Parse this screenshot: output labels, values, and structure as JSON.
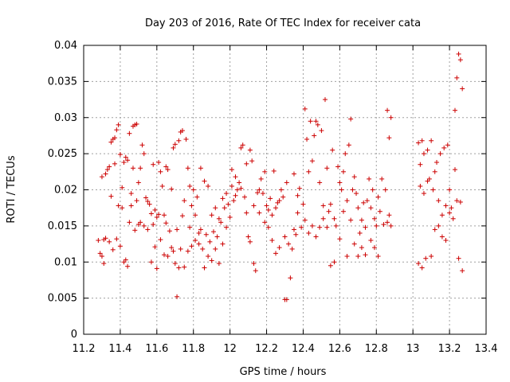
{
  "chart_data": {
    "type": "scatter",
    "title": "Day 203 of 2016, Rate Of TEC Index for receiver cata",
    "xlabel": "GPS time / hours",
    "ylabel": "ROTI / TECUs",
    "xlim": [
      11.2,
      13.4
    ],
    "ylim": [
      0,
      0.04
    ],
    "xticks": [
      "11.2",
      "11.4",
      "11.6",
      "11.8",
      "12",
      "12.2",
      "12.4",
      "12.6",
      "12.8",
      "13",
      "13.2",
      "13.4"
    ],
    "yticks": [
      "0",
      "0.005",
      "0.01",
      "0.015",
      "0.02",
      "0.025",
      "0.03",
      "0.035",
      "0.04"
    ],
    "grid": true,
    "series_color": "#cc0000",
    "series": [
      {
        "name": "ROTI",
        "points": [
          [
            11.28,
            0.013
          ],
          [
            11.29,
            0.0112
          ],
          [
            11.3,
            0.0108
          ],
          [
            11.3,
            0.0218
          ],
          [
            11.31,
            0.0131
          ],
          [
            11.31,
            0.0098
          ],
          [
            11.32,
            0.0222
          ],
          [
            11.32,
            0.0133
          ],
          [
            11.33,
            0.0228
          ],
          [
            11.34,
            0.0232
          ],
          [
            11.34,
            0.0128
          ],
          [
            11.35,
            0.0191
          ],
          [
            11.35,
            0.0266
          ],
          [
            11.36,
            0.027
          ],
          [
            11.36,
            0.0117
          ],
          [
            11.37,
            0.0236
          ],
          [
            11.37,
            0.0272
          ],
          [
            11.38,
            0.0283
          ],
          [
            11.38,
            0.0132
          ],
          [
            11.39,
            0.029
          ],
          [
            11.39,
            0.0178
          ],
          [
            11.4,
            0.0249
          ],
          [
            11.4,
            0.0122
          ],
          [
            11.41,
            0.0175
          ],
          [
            11.41,
            0.0203
          ],
          [
            11.42,
            0.0238
          ],
          [
            11.42,
            0.01
          ],
          [
            11.43,
            0.0245
          ],
          [
            11.43,
            0.0103
          ],
          [
            11.44,
            0.0094
          ],
          [
            11.44,
            0.0241
          ],
          [
            11.45,
            0.0155
          ],
          [
            11.45,
            0.0278
          ],
          [
            11.46,
            0.0195
          ],
          [
            11.46,
            0.0178
          ],
          [
            11.47,
            0.0288
          ],
          [
            11.47,
            0.023
          ],
          [
            11.48,
            0.029
          ],
          [
            11.48,
            0.0144
          ],
          [
            11.49,
            0.0291
          ],
          [
            11.49,
            0.0185
          ],
          [
            11.5,
            0.0152
          ],
          [
            11.5,
            0.021
          ],
          [
            11.51,
            0.0155
          ],
          [
            11.51,
            0.023
          ],
          [
            11.52,
            0.0262
          ],
          [
            11.53,
            0.025
          ],
          [
            11.53,
            0.015
          ],
          [
            11.54,
            0.0189
          ],
          [
            11.55,
            0.0184
          ],
          [
            11.55,
            0.0145
          ],
          [
            11.56,
            0.018
          ],
          [
            11.57,
            0.0167
          ],
          [
            11.57,
            0.01
          ],
          [
            11.58,
            0.0152
          ],
          [
            11.58,
            0.0235
          ],
          [
            11.59,
            0.0172
          ],
          [
            11.59,
            0.0121
          ],
          [
            11.6,
            0.0162
          ],
          [
            11.6,
            0.0091
          ],
          [
            11.61,
            0.0238
          ],
          [
            11.61,
            0.0166
          ],
          [
            11.62,
            0.0225
          ],
          [
            11.62,
            0.0131
          ],
          [
            11.63,
            0.0205
          ],
          [
            11.64,
            0.0165
          ],
          [
            11.64,
            0.011
          ],
          [
            11.65,
            0.0232
          ],
          [
            11.65,
            0.0154
          ],
          [
            11.66,
            0.0228
          ],
          [
            11.66,
            0.0108
          ],
          [
            11.67,
            0.0143
          ],
          [
            11.68,
            0.012
          ],
          [
            11.68,
            0.0201
          ],
          [
            11.69,
            0.0115
          ],
          [
            11.69,
            0.0258
          ],
          [
            11.7,
            0.0263
          ],
          [
            11.7,
            0.0098
          ],
          [
            11.71,
            0.0145
          ],
          [
            11.71,
            0.0052
          ],
          [
            11.72,
            0.0268
          ],
          [
            11.72,
            0.0092
          ],
          [
            11.73,
            0.028
          ],
          [
            11.73,
            0.0118
          ],
          [
            11.74,
            0.0282
          ],
          [
            11.74,
            0.0164
          ],
          [
            11.75,
            0.0185
          ],
          [
            11.75,
            0.0093
          ],
          [
            11.76,
            0.027
          ],
          [
            11.77,
            0.023
          ],
          [
            11.77,
            0.0115
          ],
          [
            11.78,
            0.0205
          ],
          [
            11.78,
            0.0148
          ],
          [
            11.79,
            0.0178
          ],
          [
            11.79,
            0.0122
          ],
          [
            11.8,
            0.02
          ],
          [
            11.81,
            0.0165
          ],
          [
            11.81,
            0.013
          ],
          [
            11.82,
            0.019
          ],
          [
            11.83,
            0.0125
          ],
          [
            11.83,
            0.014
          ],
          [
            11.84,
            0.023
          ],
          [
            11.84,
            0.0145
          ],
          [
            11.85,
            0.0118
          ],
          [
            11.86,
            0.0212
          ],
          [
            11.86,
            0.0092
          ],
          [
            11.87,
            0.0138
          ],
          [
            11.88,
            0.0108
          ],
          [
            11.88,
            0.0205
          ],
          [
            11.89,
            0.0128
          ],
          [
            11.9,
            0.0165
          ],
          [
            11.9,
            0.0102
          ],
          [
            11.91,
            0.0142
          ],
          [
            11.92,
            0.0175
          ],
          [
            11.92,
            0.0118
          ],
          [
            11.93,
            0.0135
          ],
          [
            11.94,
            0.016
          ],
          [
            11.94,
            0.0098
          ],
          [
            11.95,
            0.0155
          ],
          [
            11.96,
            0.0188
          ],
          [
            11.96,
            0.0125
          ],
          [
            11.97,
            0.0175
          ],
          [
            11.98,
            0.0148
          ],
          [
            11.98,
            0.0195
          ],
          [
            11.99,
            0.018
          ],
          [
            12.0,
            0.0162
          ],
          [
            12.01,
            0.0205
          ],
          [
            12.01,
            0.0228
          ],
          [
            12.02,
            0.0185
          ],
          [
            12.03,
            0.0218
          ],
          [
            12.03,
            0.0192
          ],
          [
            12.04,
            0.02
          ],
          [
            12.05,
            0.021
          ],
          [
            12.06,
            0.0258
          ],
          [
            12.06,
            0.0202
          ],
          [
            12.07,
            0.0262
          ],
          [
            12.08,
            0.019
          ],
          [
            12.09,
            0.0236
          ],
          [
            12.09,
            0.0168
          ],
          [
            12.1,
            0.0135
          ],
          [
            12.11,
            0.0255
          ],
          [
            12.11,
            0.0128
          ],
          [
            12.12,
            0.024
          ],
          [
            12.13,
            0.0098
          ],
          [
            12.13,
            0.0178
          ],
          [
            12.14,
            0.0088
          ],
          [
            12.15,
            0.0196
          ],
          [
            12.16,
            0.02
          ],
          [
            12.16,
            0.0168
          ],
          [
            12.17,
            0.0215
          ],
          [
            12.18,
            0.0195
          ],
          [
            12.19,
            0.0225
          ],
          [
            12.19,
            0.0155
          ],
          [
            12.2,
            0.0178
          ],
          [
            12.21,
            0.0172
          ],
          [
            12.21,
            0.0148
          ],
          [
            12.22,
            0.0188
          ],
          [
            12.23,
            0.0165
          ],
          [
            12.23,
            0.013
          ],
          [
            12.24,
            0.0226
          ],
          [
            12.25,
            0.0175
          ],
          [
            12.25,
            0.0112
          ],
          [
            12.26,
            0.0182
          ],
          [
            12.27,
            0.0185
          ],
          [
            12.27,
            0.012
          ],
          [
            12.28,
            0.02
          ],
          [
            12.29,
            0.019
          ],
          [
            12.3,
            0.0048
          ],
          [
            12.3,
            0.0135
          ],
          [
            12.31,
            0.021
          ],
          [
            12.31,
            0.0048
          ],
          [
            12.32,
            0.0125
          ],
          [
            12.33,
            0.0078
          ],
          [
            12.34,
            0.0118
          ],
          [
            12.35,
            0.0222
          ],
          [
            12.35,
            0.0145
          ],
          [
            12.36,
            0.0138
          ],
          [
            12.37,
            0.0192
          ],
          [
            12.37,
            0.0168
          ],
          [
            12.38,
            0.0202
          ],
          [
            12.39,
            0.0148
          ],
          [
            12.4,
            0.018
          ],
          [
            12.41,
            0.0312
          ],
          [
            12.41,
            0.0158
          ],
          [
            12.42,
            0.027
          ],
          [
            12.43,
            0.014
          ],
          [
            12.43,
            0.0225
          ],
          [
            12.44,
            0.0295
          ],
          [
            12.45,
            0.015
          ],
          [
            12.45,
            0.024
          ],
          [
            12.46,
            0.0275
          ],
          [
            12.47,
            0.0135
          ],
          [
            12.47,
            0.0295
          ],
          [
            12.48,
            0.029
          ],
          [
            12.49,
            0.0148
          ],
          [
            12.49,
            0.021
          ],
          [
            12.5,
            0.0282
          ],
          [
            12.51,
            0.0178
          ],
          [
            12.51,
            0.016
          ],
          [
            12.52,
            0.0325
          ],
          [
            12.53,
            0.0148
          ],
          [
            12.53,
            0.023
          ],
          [
            12.54,
            0.017
          ],
          [
            12.55,
            0.0095
          ],
          [
            12.55,
            0.018
          ],
          [
            12.56,
            0.0255
          ],
          [
            12.57,
            0.016
          ],
          [
            12.57,
            0.01
          ],
          [
            12.58,
            0.015
          ],
          [
            12.59,
            0.0232
          ],
          [
            12.6,
            0.021
          ],
          [
            12.6,
            0.0132
          ],
          [
            12.61,
            0.02
          ],
          [
            12.62,
            0.017
          ],
          [
            12.62,
            0.0225
          ],
          [
            12.63,
            0.025
          ],
          [
            12.64,
            0.0108
          ],
          [
            12.64,
            0.0185
          ],
          [
            12.65,
            0.0262
          ],
          [
            12.66,
            0.0158
          ],
          [
            12.66,
            0.0298
          ],
          [
            12.67,
            0.02
          ],
          [
            12.68,
            0.0125
          ],
          [
            12.68,
            0.0218
          ],
          [
            12.69,
            0.0195
          ],
          [
            12.7,
            0.0175
          ],
          [
            12.7,
            0.0108
          ],
          [
            12.71,
            0.014
          ],
          [
            12.72,
            0.0158
          ],
          [
            12.72,
            0.012
          ],
          [
            12.73,
            0.0182
          ],
          [
            12.74,
            0.0148
          ],
          [
            12.74,
            0.011
          ],
          [
            12.75,
            0.0185
          ],
          [
            12.76,
            0.0215
          ],
          [
            12.77,
            0.013
          ],
          [
            12.77,
            0.0175
          ],
          [
            12.78,
            0.02
          ],
          [
            12.79,
            0.012
          ],
          [
            12.79,
            0.016
          ],
          [
            12.8,
            0.015
          ],
          [
            12.81,
            0.019
          ],
          [
            12.81,
            0.0108
          ],
          [
            12.82,
            0.017
          ],
          [
            12.83,
            0.0215
          ],
          [
            12.84,
            0.0152
          ],
          [
            12.85,
            0.02
          ],
          [
            12.86,
            0.031
          ],
          [
            12.86,
            0.0155
          ],
          [
            12.87,
            0.0272
          ],
          [
            12.87,
            0.0165
          ],
          [
            12.88,
            0.03
          ],
          [
            12.88,
            0.015
          ],
          [
            13.03,
            0.0265
          ],
          [
            13.03,
            0.0098
          ],
          [
            13.04,
            0.0235
          ],
          [
            13.04,
            0.0205
          ],
          [
            13.05,
            0.0268
          ],
          [
            13.05,
            0.0092
          ],
          [
            13.06,
            0.025
          ],
          [
            13.06,
            0.0195
          ],
          [
            13.07,
            0.0105
          ],
          [
            13.08,
            0.0255
          ],
          [
            13.08,
            0.0212
          ],
          [
            13.09,
            0.0215
          ],
          [
            13.1,
            0.0108
          ],
          [
            13.1,
            0.0268
          ],
          [
            13.11,
            0.02
          ],
          [
            13.12,
            0.0225
          ],
          [
            13.12,
            0.0145
          ],
          [
            13.13,
            0.0238
          ],
          [
            13.14,
            0.0185
          ],
          [
            13.14,
            0.015
          ],
          [
            13.15,
            0.025
          ],
          [
            13.16,
            0.0165
          ],
          [
            13.16,
            0.0135
          ],
          [
            13.17,
            0.0258
          ],
          [
            13.18,
            0.0178
          ],
          [
            13.18,
            0.013
          ],
          [
            13.19,
            0.0262
          ],
          [
            13.2,
            0.0168
          ],
          [
            13.2,
            0.02
          ],
          [
            13.21,
            0.0175
          ],
          [
            13.22,
            0.016
          ],
          [
            13.23,
            0.031
          ],
          [
            13.23,
            0.0228
          ],
          [
            13.24,
            0.0185
          ],
          [
            13.24,
            0.0355
          ],
          [
            13.25,
            0.0388
          ],
          [
            13.25,
            0.0105
          ],
          [
            13.26,
            0.038
          ],
          [
            13.26,
            0.0183
          ],
          [
            13.27,
            0.034
          ],
          [
            13.27,
            0.0088
          ]
        ]
      }
    ]
  }
}
